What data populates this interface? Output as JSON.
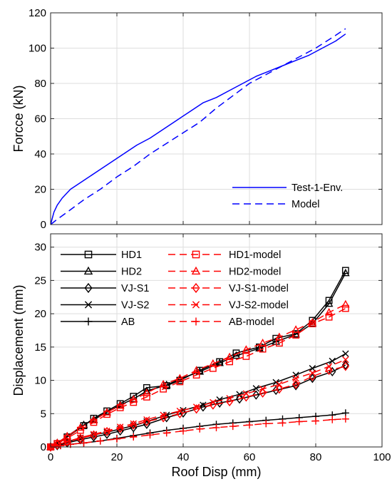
{
  "chart_data": [
    {
      "type": "line",
      "xlabel": "",
      "ylabel": "Forcce (kN)",
      "xlim": [
        0,
        100
      ],
      "ylim": [
        0,
        120
      ],
      "xticks": [
        0,
        20,
        40,
        60,
        80,
        100
      ],
      "yticks": [
        0,
        20,
        40,
        60,
        80,
        100,
        120
      ],
      "xticklabels_visible": false,
      "grid": true,
      "legend_position": "bottom-right",
      "series": [
        {
          "name": "Test-1-Env.",
          "color": "#0000ff",
          "style": "solid",
          "x": [
            0,
            1,
            2,
            3.5,
            6,
            10,
            14,
            18,
            22,
            26,
            30,
            34,
            38,
            42,
            46,
            50,
            54,
            58,
            62,
            66,
            70,
            74,
            78,
            82,
            86,
            89
          ],
          "y": [
            0,
            7,
            11,
            15,
            20,
            25,
            30,
            35,
            40,
            45,
            49,
            54,
            59,
            64,
            69,
            72,
            76,
            80,
            84,
            87,
            90,
            93,
            96,
            100,
            104,
            108
          ]
        },
        {
          "name": "Model",
          "color": "#0000ff",
          "style": "dashed",
          "x": [
            0,
            2,
            5,
            10,
            15,
            20,
            25,
            30,
            35,
            40,
            45,
            50,
            55,
            60,
            65,
            70,
            75,
            80,
            85,
            89
          ],
          "y": [
            0,
            3,
            7,
            14,
            20,
            27,
            33,
            40,
            46,
            52,
            58,
            66,
            73,
            80,
            85,
            90,
            95,
            100,
            106,
            111
          ]
        }
      ]
    },
    {
      "type": "line",
      "xlabel": "Roof Disp (mm)",
      "ylabel": "Displacement (mm)",
      "xlim": [
        0,
        100
      ],
      "ylim": [
        0,
        32
      ],
      "xticks": [
        0,
        20,
        40,
        60,
        80,
        100
      ],
      "yticks": [
        0,
        5,
        10,
        15,
        20,
        25,
        30
      ],
      "grid": true,
      "legend_position": "top-left",
      "series": [
        {
          "name": "HD1",
          "color": "#000000",
          "style": "solid",
          "marker": "square",
          "x": [
            0,
            2,
            5,
            10,
            13,
            17,
            21,
            25,
            29,
            35,
            39,
            45,
            51,
            56,
            63,
            68,
            74,
            79,
            84,
            89
          ],
          "y": [
            0,
            0.5,
            1.5,
            3.2,
            4.3,
            5.4,
            6.5,
            7.6,
            8.9,
            9.2,
            10,
            11.5,
            12.8,
            14.1,
            15,
            16.3,
            17,
            19,
            22,
            26.5
          ]
        },
        {
          "name": "HD2",
          "color": "#000000",
          "style": "solid",
          "marker": "triangle",
          "x": [
            0,
            2,
            5,
            10,
            13,
            17,
            21,
            25,
            29,
            35,
            39,
            45,
            51,
            56,
            63,
            68,
            74,
            79,
            84,
            89
          ],
          "y": [
            0,
            0.6,
            1.6,
            3.3,
            4.1,
            5.2,
            6.3,
            7.2,
            8.4,
            9.3,
            10.2,
            11.3,
            12.6,
            13.7,
            14.8,
            15.8,
            16.9,
            18.5,
            21.5,
            26.1
          ]
        },
        {
          "name": "VJ-S1",
          "color": "#000000",
          "style": "solid",
          "marker": "diamond",
          "x": [
            0,
            2,
            5,
            9,
            13,
            17,
            21,
            25,
            29,
            35,
            40,
            46,
            51,
            57,
            62,
            68,
            74,
            79,
            85,
            89
          ],
          "y": [
            0,
            0.2,
            0.6,
            1.1,
            1.5,
            1.9,
            2.4,
            2.9,
            3.4,
            4.4,
            5.1,
            6,
            6.6,
            7.2,
            7.8,
            8.5,
            9.2,
            10.3,
            11.3,
            12.3
          ]
        },
        {
          "name": "VJ-S2",
          "color": "#000000",
          "style": "solid",
          "marker": "cross",
          "x": [
            0,
            2,
            5,
            9,
            13,
            17,
            21,
            25,
            29,
            35,
            40,
            46,
            51,
            57,
            62,
            68,
            74,
            79,
            85,
            89
          ],
          "y": [
            0,
            0.3,
            0.8,
            1.3,
            1.8,
            2.2,
            2.7,
            3.2,
            3.8,
            4.8,
            5.5,
            6.3,
            7.1,
            7.9,
            8.8,
            9.7,
            10.8,
            11.8,
            12.9,
            14
          ]
        },
        {
          "name": "AB",
          "color": "#000000",
          "style": "solid",
          "marker": "plus",
          "x": [
            0,
            3,
            6,
            10,
            15,
            20,
            25,
            30,
            35,
            40,
            45,
            50,
            55,
            60,
            65,
            70,
            75,
            80,
            85,
            89
          ],
          "y": [
            0,
            0.2,
            0.4,
            0.6,
            0.9,
            1.3,
            1.7,
            2.1,
            2.5,
            2.8,
            3.1,
            3.4,
            3.6,
            3.8,
            4,
            4.2,
            4.4,
            4.6,
            4.8,
            5.1
          ]
        },
        {
          "name": "HD1-model",
          "color": "#ff0000",
          "style": "dashed",
          "marker": "square",
          "x": [
            0,
            2,
            5,
            9,
            13,
            17,
            21,
            25,
            29,
            34,
            39,
            44,
            49,
            54,
            59,
            64,
            69,
            74,
            79,
            84,
            89
          ],
          "y": [
            0,
            0.5,
            1.3,
            2.5,
            3.7,
            4.9,
            5.9,
            6.7,
            7.5,
            8.7,
            9.8,
            10.8,
            11.8,
            12.8,
            13.6,
            14.7,
            15.6,
            16.8,
            18.5,
            19.5,
            20.8
          ]
        },
        {
          "name": "HD2-model",
          "color": "#ff0000",
          "style": "dashed",
          "marker": "triangle",
          "x": [
            0,
            2,
            5,
            9,
            13,
            17,
            21,
            25,
            29,
            34,
            39,
            44,
            49,
            54,
            59,
            64,
            69,
            74,
            79,
            84,
            89
          ],
          "y": [
            0,
            0.6,
            1.6,
            2.9,
            4,
            5.2,
            6.2,
            7.1,
            8.1,
            9.4,
            10.3,
            11.5,
            12.5,
            13.5,
            14.6,
            15.6,
            16.5,
            17.6,
            18.7,
            20.2,
            21.4
          ]
        },
        {
          "name": "VJ-S1-model",
          "color": "#ff0000",
          "style": "dashed",
          "marker": "diamond",
          "x": [
            0,
            2,
            5,
            9,
            13,
            17,
            21,
            25,
            29,
            34,
            39,
            44,
            49,
            54,
            59,
            64,
            69,
            74,
            79,
            84,
            89
          ],
          "y": [
            0,
            0.3,
            0.8,
            1.3,
            1.8,
            2.3,
            2.8,
            3.3,
            3.8,
            4.4,
            5,
            5.7,
            6.3,
            6.8,
            7.5,
            8.1,
            8.7,
            9.4,
            10.6,
            11.5,
            12.1
          ]
        },
        {
          "name": "VJ-S2-model",
          "color": "#ff0000",
          "style": "dashed",
          "marker": "cross",
          "x": [
            0,
            2,
            5,
            9,
            13,
            17,
            21,
            25,
            29,
            34,
            39,
            44,
            49,
            54,
            59,
            64,
            69,
            74,
            79,
            84,
            89
          ],
          "y": [
            0,
            0.3,
            0.8,
            1.4,
            1.9,
            2.4,
            3,
            3.5,
            4.1,
            4.8,
            5.4,
            6,
            6.7,
            7.3,
            8,
            8.7,
            9.4,
            10.3,
            11.1,
            12.1,
            13.1
          ]
        },
        {
          "name": "AB-model",
          "color": "#ff0000",
          "style": "dashed",
          "marker": "plus",
          "x": [
            0,
            3,
            6,
            10,
            15,
            20,
            25,
            30,
            35,
            40,
            45,
            50,
            55,
            60,
            65,
            70,
            75,
            80,
            85,
            89
          ],
          "y": [
            0,
            0.2,
            0.4,
            0.6,
            0.9,
            1.2,
            1.5,
            1.8,
            2.1,
            2.4,
            2.7,
            2.9,
            3.1,
            3.3,
            3.5,
            3.6,
            3.8,
            3.9,
            4.1,
            4.2
          ]
        }
      ]
    }
  ]
}
